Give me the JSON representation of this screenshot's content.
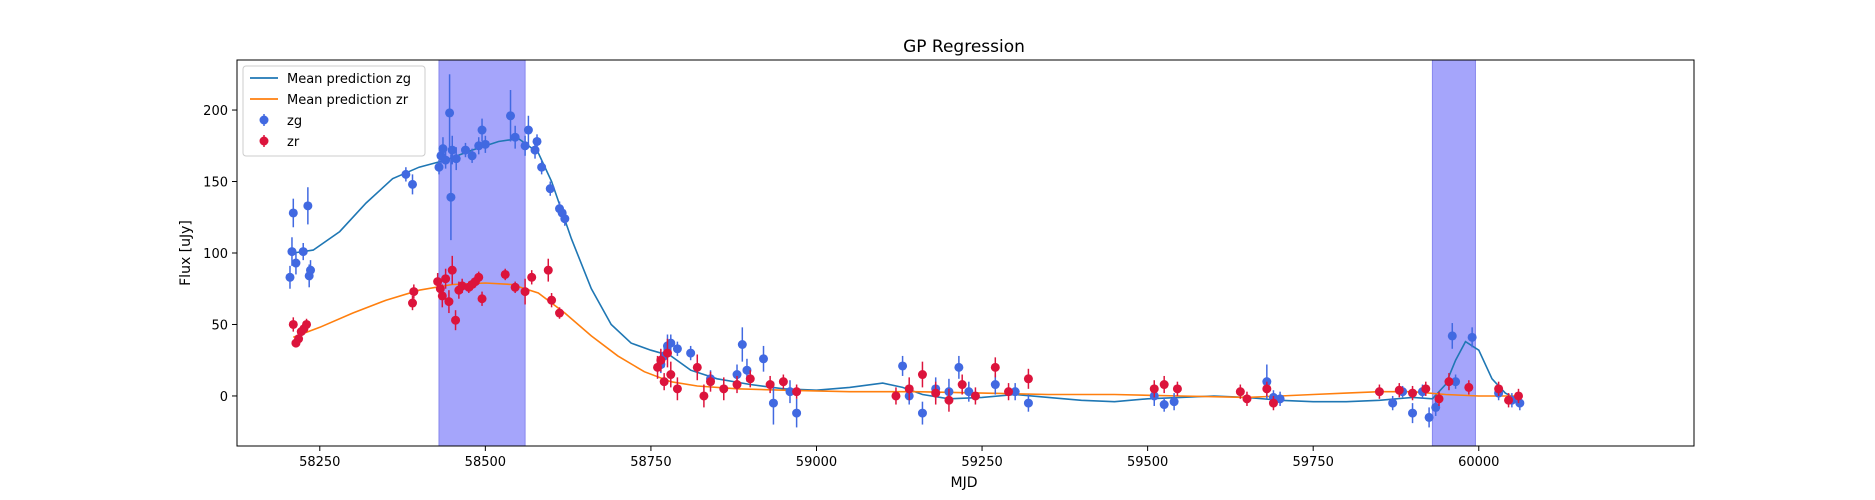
{
  "chart_data": {
    "type": "scatter",
    "title": "GP Regression",
    "xlabel": "MJD",
    "ylabel": "Flux [uJy]",
    "xlim": [
      58125,
      60325
    ],
    "ylim": [
      -35,
      235
    ],
    "xticks": [
      58250,
      58500,
      58750,
      59000,
      59250,
      59500,
      59750,
      60000
    ],
    "yticks": [
      0,
      50,
      100,
      150,
      200
    ],
    "grid": false,
    "legend_position": "upper-left",
    "shaded_regions": [
      {
        "x0": 58430,
        "x1": 58560,
        "color": "#a5a5fb"
      },
      {
        "x0": 59930,
        "x1": 59995,
        "color": "#a5a5fb"
      }
    ],
    "series": [
      {
        "name": "Mean prediction zg",
        "kind": "line",
        "color": "#1f77b4",
        "points": [
          [
            58210,
            100
          ],
          [
            58240,
            102
          ],
          [
            58280,
            115
          ],
          [
            58320,
            135
          ],
          [
            58360,
            152
          ],
          [
            58400,
            160
          ],
          [
            58440,
            165
          ],
          [
            58480,
            172
          ],
          [
            58520,
            178
          ],
          [
            58550,
            180
          ],
          [
            58580,
            170
          ],
          [
            58600,
            150
          ],
          [
            58630,
            110
          ],
          [
            58660,
            75
          ],
          [
            58690,
            50
          ],
          [
            58720,
            37
          ],
          [
            58750,
            32
          ],
          [
            58780,
            28
          ],
          [
            58810,
            18
          ],
          [
            58850,
            12
          ],
          [
            58900,
            8
          ],
          [
            58950,
            5
          ],
          [
            59000,
            4
          ],
          [
            59050,
            6
          ],
          [
            59100,
            9
          ],
          [
            59130,
            6
          ],
          [
            59160,
            1
          ],
          [
            59200,
            -2
          ],
          [
            59250,
            -1
          ],
          [
            59300,
            1
          ],
          [
            59350,
            -1
          ],
          [
            59400,
            -3
          ],
          [
            59450,
            -4
          ],
          [
            59500,
            -2
          ],
          [
            59550,
            -1
          ],
          [
            59600,
            0
          ],
          [
            59650,
            -1
          ],
          [
            59700,
            -3
          ],
          [
            59750,
            -4
          ],
          [
            59800,
            -4
          ],
          [
            59850,
            -3
          ],
          [
            59900,
            -1
          ],
          [
            59930,
            -2
          ],
          [
            59950,
            8
          ],
          [
            59965,
            25
          ],
          [
            59980,
            38
          ],
          [
            60000,
            32
          ],
          [
            60020,
            12
          ],
          [
            60040,
            2
          ],
          [
            60065,
            -4
          ]
        ]
      },
      {
        "name": "Mean prediction zr",
        "kind": "line",
        "color": "#ff7f0e",
        "points": [
          [
            58210,
            41
          ],
          [
            58250,
            48
          ],
          [
            58300,
            58
          ],
          [
            58350,
            67
          ],
          [
            58400,
            74
          ],
          [
            58450,
            78
          ],
          [
            58500,
            79
          ],
          [
            58540,
            78
          ],
          [
            58580,
            72
          ],
          [
            58620,
            58
          ],
          [
            58660,
            42
          ],
          [
            58700,
            28
          ],
          [
            58740,
            17
          ],
          [
            58780,
            10
          ],
          [
            58820,
            7
          ],
          [
            58880,
            5
          ],
          [
            58950,
            4
          ],
          [
            59050,
            3
          ],
          [
            59150,
            3
          ],
          [
            59250,
            2
          ],
          [
            59350,
            1
          ],
          [
            59450,
            1
          ],
          [
            59550,
            0
          ],
          [
            59650,
            -1
          ],
          [
            59700,
            0
          ],
          [
            59750,
            1
          ],
          [
            59800,
            2
          ],
          [
            59850,
            3
          ],
          [
            59900,
            3
          ],
          [
            59950,
            1
          ],
          [
            60000,
            0
          ],
          [
            60065,
            0
          ]
        ]
      },
      {
        "name": "zg",
        "kind": "errorbar",
        "color": "#4169e1",
        "points": [
          [
            58205,
            83,
            8
          ],
          [
            58208,
            101,
            10
          ],
          [
            58210,
            128,
            10
          ],
          [
            58214,
            93,
            8
          ],
          [
            58225,
            101,
            6
          ],
          [
            58232,
            133,
            13
          ],
          [
            58234,
            84,
            8
          ],
          [
            58236,
            88,
            7
          ],
          [
            58380,
            155,
            5
          ],
          [
            58390,
            148,
            7
          ],
          [
            58430,
            160,
            5
          ],
          [
            58433,
            168,
            7
          ],
          [
            58436,
            173,
            8
          ],
          [
            58440,
            165,
            6
          ],
          [
            58446,
            198,
            27
          ],
          [
            58448,
            139,
            30
          ],
          [
            58450,
            172,
            10
          ],
          [
            58456,
            166,
            8
          ],
          [
            58470,
            172,
            5
          ],
          [
            58480,
            168,
            5
          ],
          [
            58490,
            175,
            6
          ],
          [
            58495,
            186,
            8
          ],
          [
            58500,
            176,
            6
          ],
          [
            58538,
            196,
            18
          ],
          [
            58545,
            181,
            8
          ],
          [
            58560,
            175,
            7
          ],
          [
            58565,
            186,
            10
          ],
          [
            58575,
            172,
            6
          ],
          [
            58578,
            178,
            5
          ],
          [
            58585,
            160,
            5
          ],
          [
            58598,
            145,
            5
          ],
          [
            58612,
            131,
            5
          ],
          [
            58616,
            128,
            5
          ],
          [
            58620,
            124,
            5
          ],
          [
            58765,
            22,
            6
          ],
          [
            58770,
            28,
            8
          ],
          [
            58775,
            35,
            8
          ],
          [
            58780,
            37,
            6
          ],
          [
            58790,
            33,
            5
          ],
          [
            58810,
            30,
            5
          ],
          [
            58840,
            12,
            6
          ],
          [
            58880,
            15,
            7
          ],
          [
            58888,
            36,
            12
          ],
          [
            58895,
            18,
            8
          ],
          [
            58920,
            26,
            9
          ],
          [
            58935,
            -5,
            15
          ],
          [
            58960,
            3,
            8
          ],
          [
            58970,
            -12,
            10
          ],
          [
            59130,
            21,
            7
          ],
          [
            59140,
            0,
            6
          ],
          [
            59160,
            -12,
            8
          ],
          [
            59180,
            5,
            8
          ],
          [
            59200,
            3,
            9
          ],
          [
            59215,
            20,
            8
          ],
          [
            59230,
            3,
            7
          ],
          [
            59270,
            8,
            7
          ],
          [
            59300,
            3,
            6
          ],
          [
            59320,
            -5,
            6
          ],
          [
            59510,
            0,
            7
          ],
          [
            59525,
            -6,
            5
          ],
          [
            59540,
            -4,
            6
          ],
          [
            59680,
            10,
            12
          ],
          [
            59690,
            -1,
            5
          ],
          [
            59700,
            -2,
            5
          ],
          [
            59870,
            -5,
            5
          ],
          [
            59885,
            3,
            4
          ],
          [
            59900,
            -12,
            7
          ],
          [
            59915,
            3,
            5
          ],
          [
            59925,
            -15,
            7
          ],
          [
            59935,
            -8,
            6
          ],
          [
            59960,
            42,
            9
          ],
          [
            59965,
            10,
            5
          ],
          [
            59990,
            41,
            7
          ],
          [
            60030,
            2,
            5
          ],
          [
            60050,
            -3,
            5
          ],
          [
            60062,
            -5,
            5
          ]
        ]
      },
      {
        "name": "zr",
        "kind": "errorbar",
        "color": "#dc143c",
        "points": [
          [
            58210,
            50,
            5
          ],
          [
            58214,
            37,
            3
          ],
          [
            58218,
            40,
            4
          ],
          [
            58222,
            45,
            4
          ],
          [
            58226,
            47,
            4
          ],
          [
            58230,
            50,
            4
          ],
          [
            58390,
            65,
            5
          ],
          [
            58392,
            73,
            5
          ],
          [
            58428,
            80,
            6
          ],
          [
            58432,
            75,
            6
          ],
          [
            58435,
            70,
            8
          ],
          [
            58440,
            82,
            7
          ],
          [
            58445,
            66,
            8
          ],
          [
            58450,
            88,
            10
          ],
          [
            58455,
            53,
            7
          ],
          [
            58460,
            74,
            6
          ],
          [
            58465,
            77,
            5
          ],
          [
            58475,
            76,
            4
          ],
          [
            58480,
            78,
            4
          ],
          [
            58485,
            80,
            4
          ],
          [
            58490,
            83,
            4
          ],
          [
            58495,
            68,
            5
          ],
          [
            58530,
            85,
            4
          ],
          [
            58545,
            76,
            4
          ],
          [
            58560,
            73,
            9
          ],
          [
            58570,
            83,
            5
          ],
          [
            58595,
            88,
            8
          ],
          [
            58600,
            67,
            5
          ],
          [
            58612,
            58,
            4
          ],
          [
            58760,
            20,
            8
          ],
          [
            58765,
            25,
            8
          ],
          [
            58770,
            10,
            6
          ],
          [
            58775,
            30,
            10
          ],
          [
            58780,
            15,
            9
          ],
          [
            58790,
            5,
            8
          ],
          [
            58820,
            20,
            9
          ],
          [
            58830,
            0,
            8
          ],
          [
            58840,
            10,
            7
          ],
          [
            58860,
            5,
            8
          ],
          [
            58880,
            8,
            6
          ],
          [
            58900,
            12,
            6
          ],
          [
            58930,
            8,
            6
          ],
          [
            58950,
            10,
            5
          ],
          [
            58970,
            3,
            5
          ],
          [
            59120,
            0,
            6
          ],
          [
            59140,
            5,
            8
          ],
          [
            59160,
            15,
            9
          ],
          [
            59180,
            2,
            8
          ],
          [
            59200,
            -3,
            8
          ],
          [
            59220,
            8,
            7
          ],
          [
            59240,
            0,
            6
          ],
          [
            59270,
            20,
            7
          ],
          [
            59290,
            3,
            6
          ],
          [
            59320,
            12,
            7
          ],
          [
            59510,
            5,
            6
          ],
          [
            59525,
            8,
            6
          ],
          [
            59545,
            5,
            5
          ],
          [
            59640,
            3,
            5
          ],
          [
            59650,
            -2,
            5
          ],
          [
            59680,
            5,
            5
          ],
          [
            59690,
            -5,
            5
          ],
          [
            59850,
            3,
            5
          ],
          [
            59880,
            4,
            5
          ],
          [
            59900,
            2,
            5
          ],
          [
            59920,
            5,
            5
          ],
          [
            59940,
            -2,
            5
          ],
          [
            59955,
            10,
            6
          ],
          [
            59985,
            6,
            5
          ],
          [
            60030,
            5,
            5
          ],
          [
            60045,
            -3,
            5
          ],
          [
            60060,
            0,
            5
          ]
        ]
      }
    ]
  },
  "legend": {
    "items": [
      {
        "label": "Mean prediction zg",
        "color": "#1f77b4",
        "kind": "line"
      },
      {
        "label": "Mean prediction zr",
        "color": "#ff7f0e",
        "kind": "line"
      },
      {
        "label": "zg",
        "color": "#4169e1",
        "kind": "errorbar"
      },
      {
        "label": "zr",
        "color": "#dc143c",
        "kind": "errorbar"
      }
    ]
  }
}
